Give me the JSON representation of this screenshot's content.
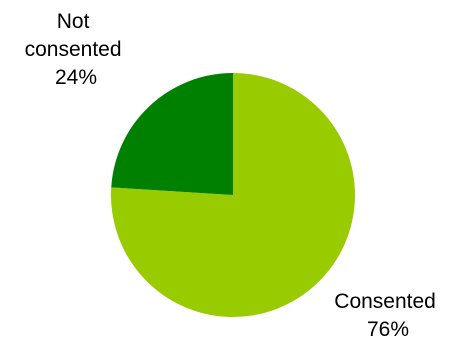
{
  "chart_data": {
    "type": "pie",
    "title": "",
    "slices": [
      {
        "label": "Consented",
        "value": 76,
        "value_label": "76%",
        "color": "#99CC00"
      },
      {
        "label": "Not consented",
        "value": 24,
        "value_label": "24%",
        "color": "#008000"
      }
    ],
    "legend": "none",
    "labels_outside": true
  }
}
